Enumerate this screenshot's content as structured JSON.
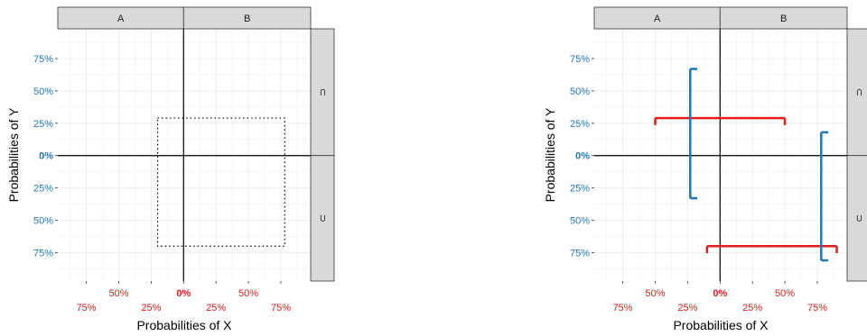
{
  "colors": {
    "x_axis_text": "#e41a1c",
    "y_axis_text": "#1f78b4",
    "x_interval": "#e41a1c",
    "y_interval": "#1f78b4",
    "strip_fill": "#d9d9d9",
    "grid": "#ebebeb"
  },
  "chart_data": [
    {
      "type": "scatter",
      "facets": {
        "columns": [
          "A",
          "B"
        ],
        "rows": [
          "⊂",
          "⊃"
        ]
      },
      "xlabel": "Probabilities of X",
      "ylabel": "Probabilities of Y",
      "x_ticks": [
        {
          "value": -0.75,
          "label": "75%"
        },
        {
          "value": -0.5,
          "label": "50%"
        },
        {
          "value": -0.25,
          "label": "25%"
        },
        {
          "value": 0,
          "label": "0%"
        },
        {
          "value": 0.25,
          "label": "25%"
        },
        {
          "value": 0.5,
          "label": "50%"
        },
        {
          "value": 0.75,
          "label": "75%"
        }
      ],
      "y_ticks": [
        {
          "value": 0.75,
          "label": "75%"
        },
        {
          "value": 0.5,
          "label": "50%"
        },
        {
          "value": 0.25,
          "label": "25%"
        },
        {
          "value": 0,
          "label": "0%"
        },
        {
          "value": -0.25,
          "label": "25%"
        },
        {
          "value": -0.5,
          "label": "50%"
        },
        {
          "value": -0.75,
          "label": "75%"
        }
      ],
      "xlim": [
        -0.97,
        0.98
      ],
      "ylim": [
        -0.97,
        0.98
      ],
      "grid": true,
      "dotted_rectangle": {
        "x": [
          -0.2,
          0.78
        ],
        "y": [
          -0.7,
          0.29
        ]
      }
    },
    {
      "type": "scatter",
      "facets": {
        "columns": [
          "A",
          "B"
        ],
        "rows": [
          "⊂",
          "⊃"
        ]
      },
      "xlabel": "Probabilities of X",
      "ylabel": "Probabilities of Y",
      "x_ticks": [
        {
          "value": -0.75,
          "label": "75%"
        },
        {
          "value": -0.5,
          "label": "50%"
        },
        {
          "value": -0.25,
          "label": "25%"
        },
        {
          "value": 0,
          "label": "0%"
        },
        {
          "value": 0.25,
          "label": "25%"
        },
        {
          "value": 0.5,
          "label": "50%"
        },
        {
          "value": 0.75,
          "label": "75%"
        }
      ],
      "y_ticks": [
        {
          "value": 0.75,
          "label": "75%"
        },
        {
          "value": 0.5,
          "label": "50%"
        },
        {
          "value": 0.25,
          "label": "25%"
        },
        {
          "value": 0,
          "label": "0%"
        },
        {
          "value": -0.25,
          "label": "25%"
        },
        {
          "value": -0.5,
          "label": "50%"
        },
        {
          "value": -0.75,
          "label": "75%"
        }
      ],
      "xlim": [
        -0.97,
        0.98
      ],
      "ylim": [
        -0.97,
        0.98
      ],
      "grid": true,
      "x_intervals": [
        {
          "y": 0.29,
          "x_from": -0.5,
          "x_to": 0.5
        },
        {
          "y": -0.7,
          "x_from": -0.1,
          "x_to": 0.9
        }
      ],
      "y_intervals": [
        {
          "x": -0.23,
          "y_from": -0.33,
          "y_to": 0.67
        },
        {
          "x": 0.78,
          "y_from": -0.81,
          "y_to": 0.18
        }
      ]
    }
  ]
}
